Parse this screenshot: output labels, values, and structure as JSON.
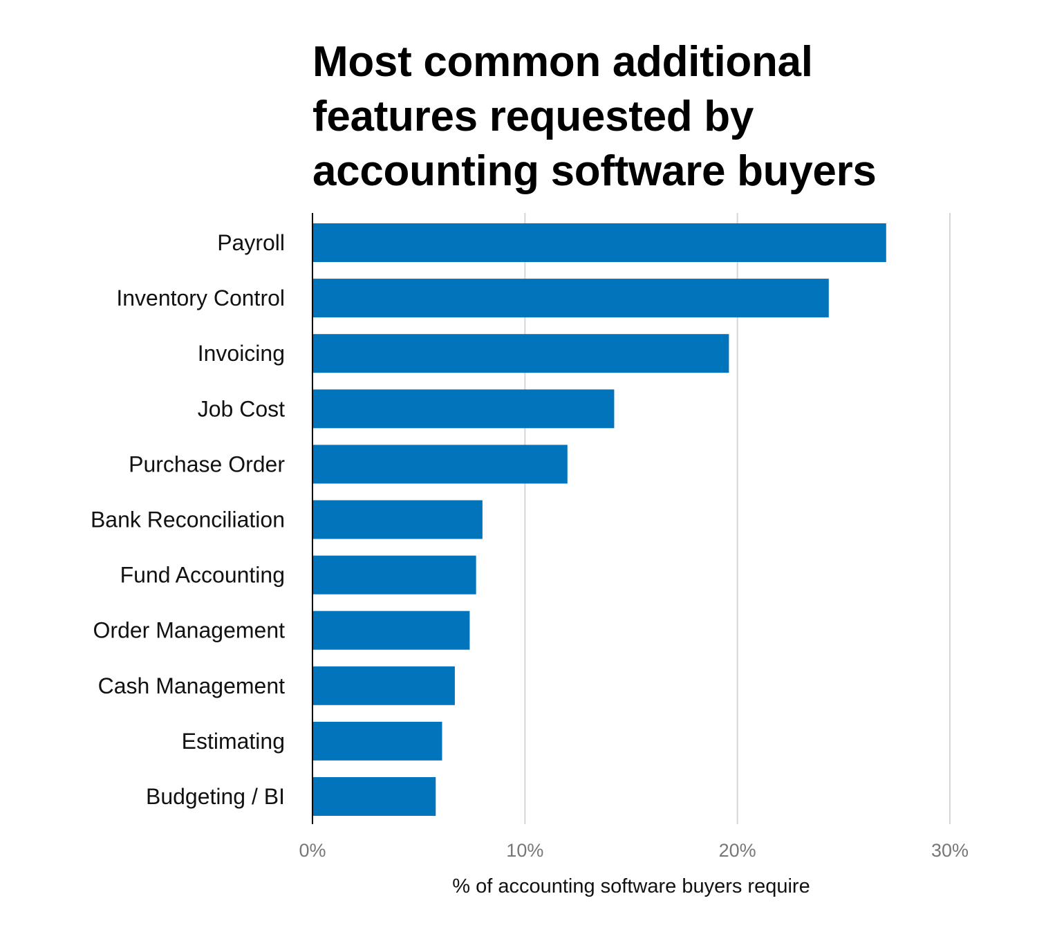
{
  "chart_data": {
    "type": "bar",
    "orientation": "horizontal",
    "title_lines": [
      "Most common additional",
      "features requested by",
      "accounting software buyers"
    ],
    "categories": [
      "Payroll",
      "Inventory Control",
      "Invoicing",
      "Job Cost",
      "Purchase Order",
      "Bank Reconciliation",
      "Fund Accounting",
      "Order Management",
      "Cash Management",
      "Estimating",
      "Budgeting / BI"
    ],
    "values": [
      27.0,
      24.3,
      19.6,
      14.2,
      12.0,
      8.0,
      7.7,
      7.4,
      6.7,
      6.1,
      5.8
    ],
    "xlabel": "% of accounting software buyers require",
    "xlim": [
      0,
      30
    ],
    "ticks": [
      0,
      10,
      20,
      30
    ],
    "tick_labels": [
      "0%",
      "10%",
      "20%",
      "30%"
    ],
    "grid": true,
    "bar_color": "#0174BB",
    "gridline_color": "#D5D5D5",
    "axis_color": "#000000"
  }
}
